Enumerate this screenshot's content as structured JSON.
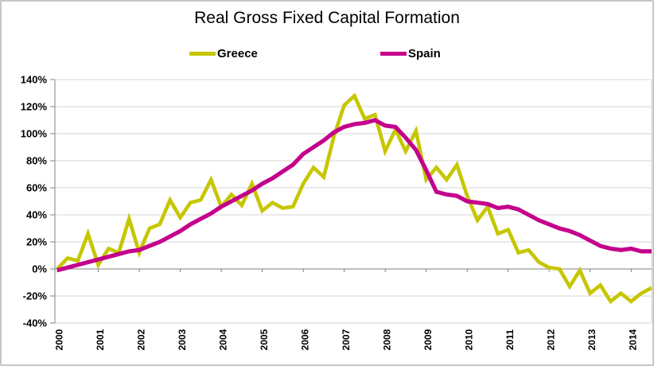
{
  "chart_data": {
    "type": "line",
    "title": "Real Gross Fixed Capital Formation",
    "x_tick_labels": [
      "2000",
      "2001",
      "2002",
      "2003",
      "2004",
      "2005",
      "2006",
      "2007",
      "2008",
      "2009",
      "2010",
      "2011",
      "2012",
      "2013",
      "2014"
    ],
    "x_frequency": "quarterly",
    "x_start": "2000",
    "points_per_year": 4,
    "ylim": [
      -40,
      140
    ],
    "y_tick_step": 20,
    "y_tick_labels": [
      "140%",
      "120%",
      "100%",
      "80%",
      "60%",
      "40%",
      "20%",
      "0%",
      "-20%",
      "-40%"
    ],
    "grid": true,
    "legend_position": "top",
    "gridline_color": "#d6d6d6",
    "axis_color": "#808080",
    "series": [
      {
        "name": "Greece",
        "color": "#c6c600",
        "values": [
          0,
          8,
          6,
          26,
          3,
          15,
          12,
          37,
          12,
          30,
          33,
          51,
          38,
          49,
          51,
          66,
          46,
          55,
          47,
          63,
          43,
          49,
          45,
          46,
          63,
          75,
          68,
          98,
          121,
          128,
          111,
          114,
          87,
          103,
          87,
          102,
          66,
          75,
          66,
          77,
          54,
          36,
          46,
          26,
          29,
          12,
          14,
          5,
          1,
          0,
          -13,
          -1,
          -18,
          -12,
          -24,
          -18,
          -24,
          -18,
          -14
        ]
      },
      {
        "name": "Spain",
        "color": "#c4008c",
        "values": [
          -1,
          1,
          3,
          5,
          7,
          9,
          11,
          13,
          14,
          17,
          20,
          24,
          28,
          33,
          37,
          41,
          46,
          50,
          54,
          58,
          63,
          67,
          72,
          77,
          85,
          90,
          95,
          101,
          105,
          107,
          108,
          110,
          106,
          105,
          97,
          88,
          73,
          57,
          55,
          54,
          50,
          49,
          48,
          45,
          46,
          44,
          40,
          36,
          33,
          30,
          28,
          25,
          21,
          17,
          15,
          14,
          15,
          13,
          13
        ]
      }
    ]
  }
}
